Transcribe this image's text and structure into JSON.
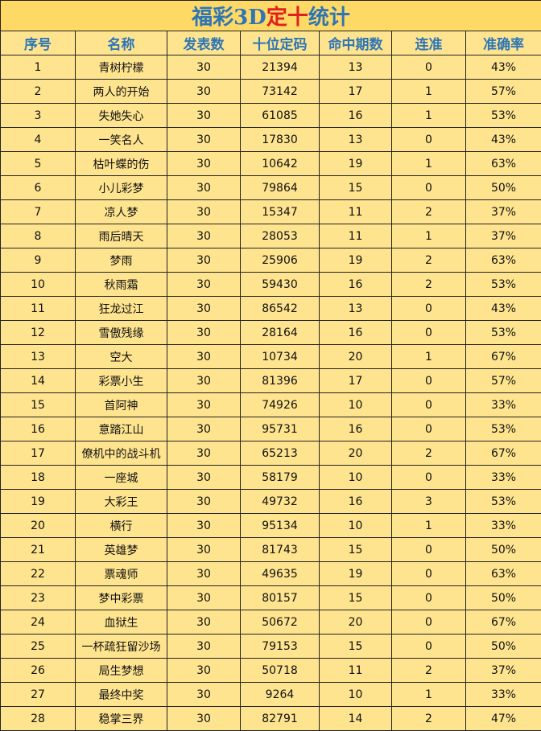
{
  "header": {
    "title_parts": [
      "福彩3D",
      "定十",
      "统计"
    ]
  },
  "table": {
    "columns": [
      "序号",
      "名称",
      "发表数",
      "十位定码",
      "命中期数",
      "连准",
      "准确率"
    ],
    "rows": [
      [
        "1",
        "青树柠檬",
        "30",
        "21394",
        "13",
        "0",
        "43%"
      ],
      [
        "2",
        "两人的开始",
        "30",
        "73142",
        "17",
        "1",
        "57%"
      ],
      [
        "3",
        "失她失心",
        "30",
        "61085",
        "16",
        "1",
        "53%"
      ],
      [
        "4",
        "一笑名人",
        "30",
        "17830",
        "13",
        "0",
        "43%"
      ],
      [
        "5",
        "枯叶蝶的伤",
        "30",
        "10642",
        "19",
        "1",
        "63%"
      ],
      [
        "6",
        "小儿彩梦",
        "30",
        "79864",
        "15",
        "0",
        "50%"
      ],
      [
        "7",
        "凉人梦",
        "30",
        "15347",
        "11",
        "2",
        "37%"
      ],
      [
        "8",
        "雨后晴天",
        "30",
        "28053",
        "11",
        "1",
        "37%"
      ],
      [
        "9",
        "梦雨",
        "30",
        "25906",
        "19",
        "2",
        "63%"
      ],
      [
        "10",
        "秋雨霜",
        "30",
        "59430",
        "16",
        "2",
        "53%"
      ],
      [
        "11",
        "狂龙过江",
        "30",
        "86542",
        "13",
        "0",
        "43%"
      ],
      [
        "12",
        "雪傲残缘",
        "30",
        "28164",
        "16",
        "0",
        "53%"
      ],
      [
        "13",
        "空大",
        "30",
        "10734",
        "20",
        "1",
        "67%"
      ],
      [
        "14",
        "彩票小生",
        "30",
        "81396",
        "17",
        "0",
        "57%"
      ],
      [
        "15",
        "首阿神",
        "30",
        "74926",
        "10",
        "0",
        "33%"
      ],
      [
        "16",
        "意踏江山",
        "30",
        "95731",
        "16",
        "0",
        "53%"
      ],
      [
        "17",
        "僚机中的战斗机",
        "30",
        "65213",
        "20",
        "2",
        "67%"
      ],
      [
        "18",
        "一座城",
        "30",
        "58179",
        "10",
        "0",
        "33%"
      ],
      [
        "19",
        "大彩王",
        "30",
        "49732",
        "16",
        "3",
        "53%"
      ],
      [
        "20",
        "横行",
        "30",
        "95134",
        "10",
        "1",
        "33%"
      ],
      [
        "21",
        "英雄梦",
        "30",
        "81743",
        "15",
        "0",
        "50%"
      ],
      [
        "22",
        "票魂师",
        "30",
        "49635",
        "19",
        "0",
        "63%"
      ],
      [
        "23",
        "梦中彩票",
        "30",
        "80157",
        "15",
        "0",
        "50%"
      ],
      [
        "24",
        "血狱生",
        "30",
        "50672",
        "20",
        "0",
        "67%"
      ],
      [
        "25",
        "一杯疏狂留沙场",
        "30",
        "79153",
        "15",
        "0",
        "50%"
      ],
      [
        "26",
        "局生梦想",
        "30",
        "50718",
        "11",
        "2",
        "37%"
      ],
      [
        "27",
        "最终中奖",
        "30",
        "9264",
        "10",
        "1",
        "33%"
      ],
      [
        "28",
        "稳掌三界",
        "30",
        "82791",
        "14",
        "2",
        "47%"
      ]
    ]
  }
}
